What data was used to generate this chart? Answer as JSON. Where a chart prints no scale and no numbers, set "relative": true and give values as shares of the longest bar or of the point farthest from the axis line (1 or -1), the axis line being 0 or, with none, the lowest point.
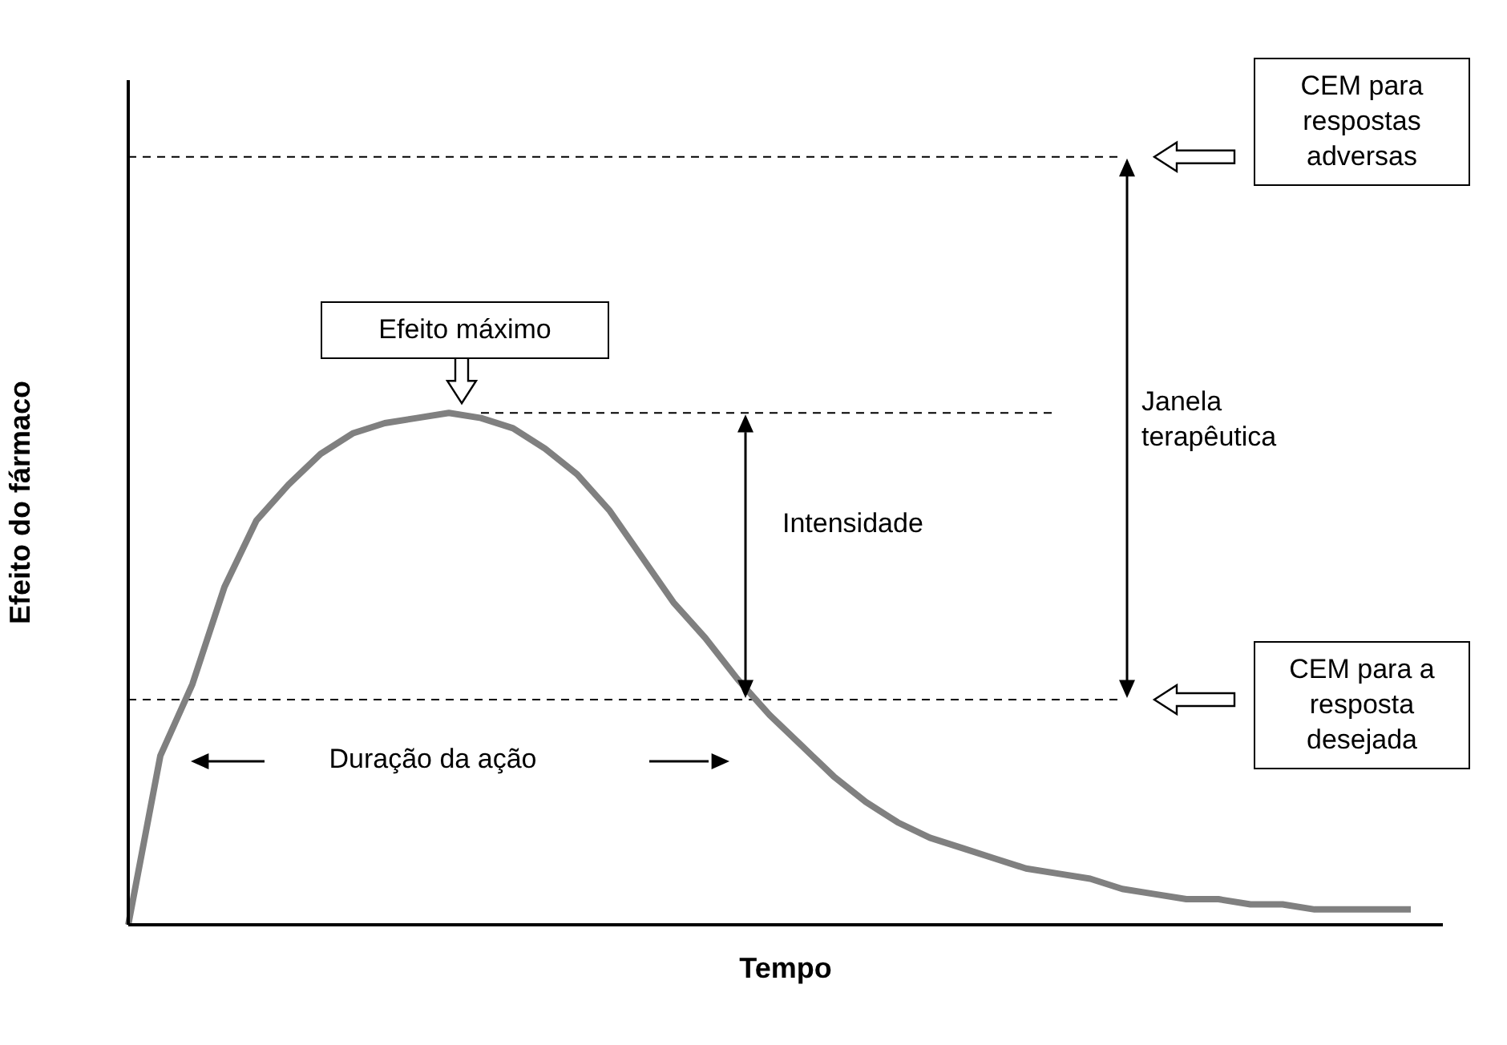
{
  "chart_data": {
    "type": "line",
    "relative": true,
    "xlabel": "Tempo",
    "ylabel": "Efeito do fármaco",
    "categories": [
      null,
      null,
      null,
      null,
      null,
      null,
      null,
      null,
      null,
      null,
      null,
      null,
      null,
      null,
      null,
      null,
      null,
      null,
      null,
      null,
      null,
      null,
      null,
      null,
      null,
      null,
      null,
      null,
      null,
      null,
      null,
      null,
      null,
      null,
      null,
      null,
      null,
      null,
      null,
      null,
      null
    ],
    "series": [
      {
        "color": "#808080",
        "values": [
          0,
          0.33,
          0.47,
          0.66,
          0.79,
          0.86,
          0.92,
          0.96,
          0.98,
          0.99,
          1.0,
          0.99,
          0.97,
          0.93,
          0.88,
          0.81,
          0.72,
          0.63,
          0.56,
          0.48,
          0.41,
          0.35,
          0.29,
          0.24,
          0.2,
          0.17,
          0.15,
          0.13,
          0.11,
          0.1,
          0.09,
          0.07,
          0.06,
          0.05,
          0.05,
          0.04,
          0.04,
          0.03,
          0.03,
          0.03,
          0.03
        ]
      }
    ],
    "ref_lines": [
      {
        "axis": "y",
        "value": 1.5,
        "color": "#000000",
        "line_style": "dashed"
      },
      {
        "axis": "y",
        "value": 0.44,
        "color": "#000000",
        "line_style": "dashed"
      },
      {
        "axis": "y",
        "value": 1.0,
        "color": "#000000",
        "line_style": "dashed"
      }
    ],
    "annotations": [
      "CEM para respostas adversas",
      "Efeito máximo",
      "Janela terapêutica",
      "Intensidade",
      "Duração da ação",
      "CEM para a resposta desejada"
    ]
  }
}
